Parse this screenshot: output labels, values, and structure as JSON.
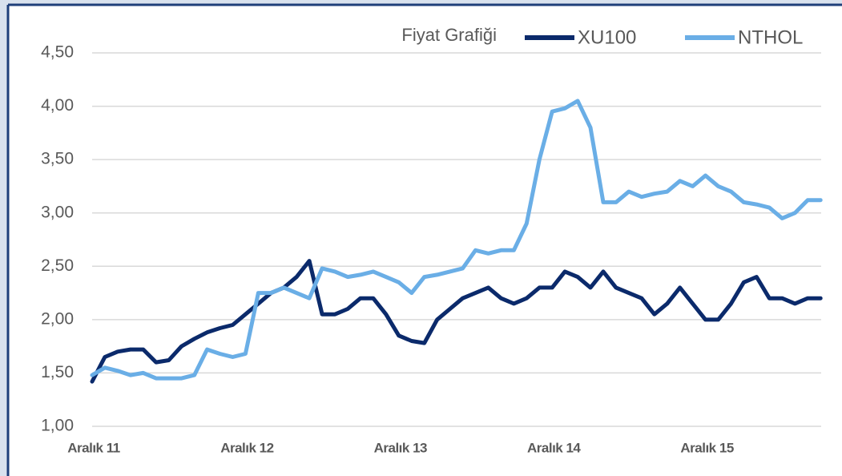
{
  "chart_data": {
    "type": "line",
    "title": "Fiyat Grafiği",
    "categories": [
      "Aralık 11",
      null,
      null,
      null,
      null,
      null,
      null,
      null,
      null,
      null,
      null,
      null,
      "Aralık 12",
      null,
      null,
      null,
      null,
      null,
      null,
      null,
      null,
      null,
      null,
      null,
      "Aralık 13",
      null,
      null,
      null,
      null,
      null,
      null,
      null,
      null,
      null,
      null,
      null,
      "Aralık 14",
      null,
      null,
      null,
      null,
      null,
      null,
      null,
      null,
      null,
      null,
      null,
      "Aralık 15",
      null,
      null,
      null,
      null,
      null,
      null,
      null,
      null,
      null
    ],
    "series": [
      {
        "name": "XU100",
        "color": "#0b2a6b",
        "values": [
          1.42,
          1.65,
          1.7,
          1.72,
          1.72,
          1.6,
          1.62,
          1.75,
          1.82,
          1.88,
          1.92,
          1.95,
          2.05,
          2.15,
          2.25,
          2.3,
          2.4,
          2.55,
          2.05,
          2.05,
          2.1,
          2.2,
          2.2,
          2.05,
          1.85,
          1.8,
          1.78,
          2.0,
          2.1,
          2.2,
          2.25,
          2.3,
          2.2,
          2.15,
          2.2,
          2.3,
          2.3,
          2.45,
          2.4,
          2.3,
          2.45,
          2.3,
          2.25,
          2.2,
          2.05,
          2.15,
          2.3,
          2.15,
          2.0,
          2.0,
          2.15,
          2.35,
          2.4,
          2.2,
          2.2,
          2.15,
          2.2,
          2.2
        ]
      },
      {
        "name": "NTHOL",
        "color": "#6aaee6",
        "values": [
          1.48,
          1.55,
          1.52,
          1.48,
          1.5,
          1.45,
          1.45,
          1.45,
          1.48,
          1.72,
          1.68,
          1.65,
          1.68,
          2.25,
          2.25,
          2.3,
          2.25,
          2.2,
          2.48,
          2.45,
          2.4,
          2.42,
          2.45,
          2.4,
          2.35,
          2.25,
          2.4,
          2.42,
          2.45,
          2.48,
          2.65,
          2.62,
          2.65,
          2.65,
          2.9,
          3.5,
          3.95,
          3.98,
          4.05,
          3.8,
          3.1,
          3.1,
          3.2,
          3.15,
          3.18,
          3.2,
          3.3,
          3.25,
          3.35,
          3.25,
          3.2,
          3.1,
          3.08,
          3.05,
          2.95,
          3.0,
          3.12,
          3.12
        ]
      }
    ],
    "ylim": [
      1,
      4.5
    ],
    "yticks": [
      {
        "value": 1,
        "label": "1,00"
      },
      {
        "value": 1.5,
        "label": "1,50"
      },
      {
        "value": 2,
        "label": "2,00"
      },
      {
        "value": 2.5,
        "label": "2,50"
      },
      {
        "value": 3,
        "label": "3,00"
      },
      {
        "value": 3.5,
        "label": "3,50"
      },
      {
        "value": 4,
        "label": "4,00"
      },
      {
        "value": 4.5,
        "label": "4,50"
      }
    ],
    "grid": true,
    "legend": "top"
  }
}
